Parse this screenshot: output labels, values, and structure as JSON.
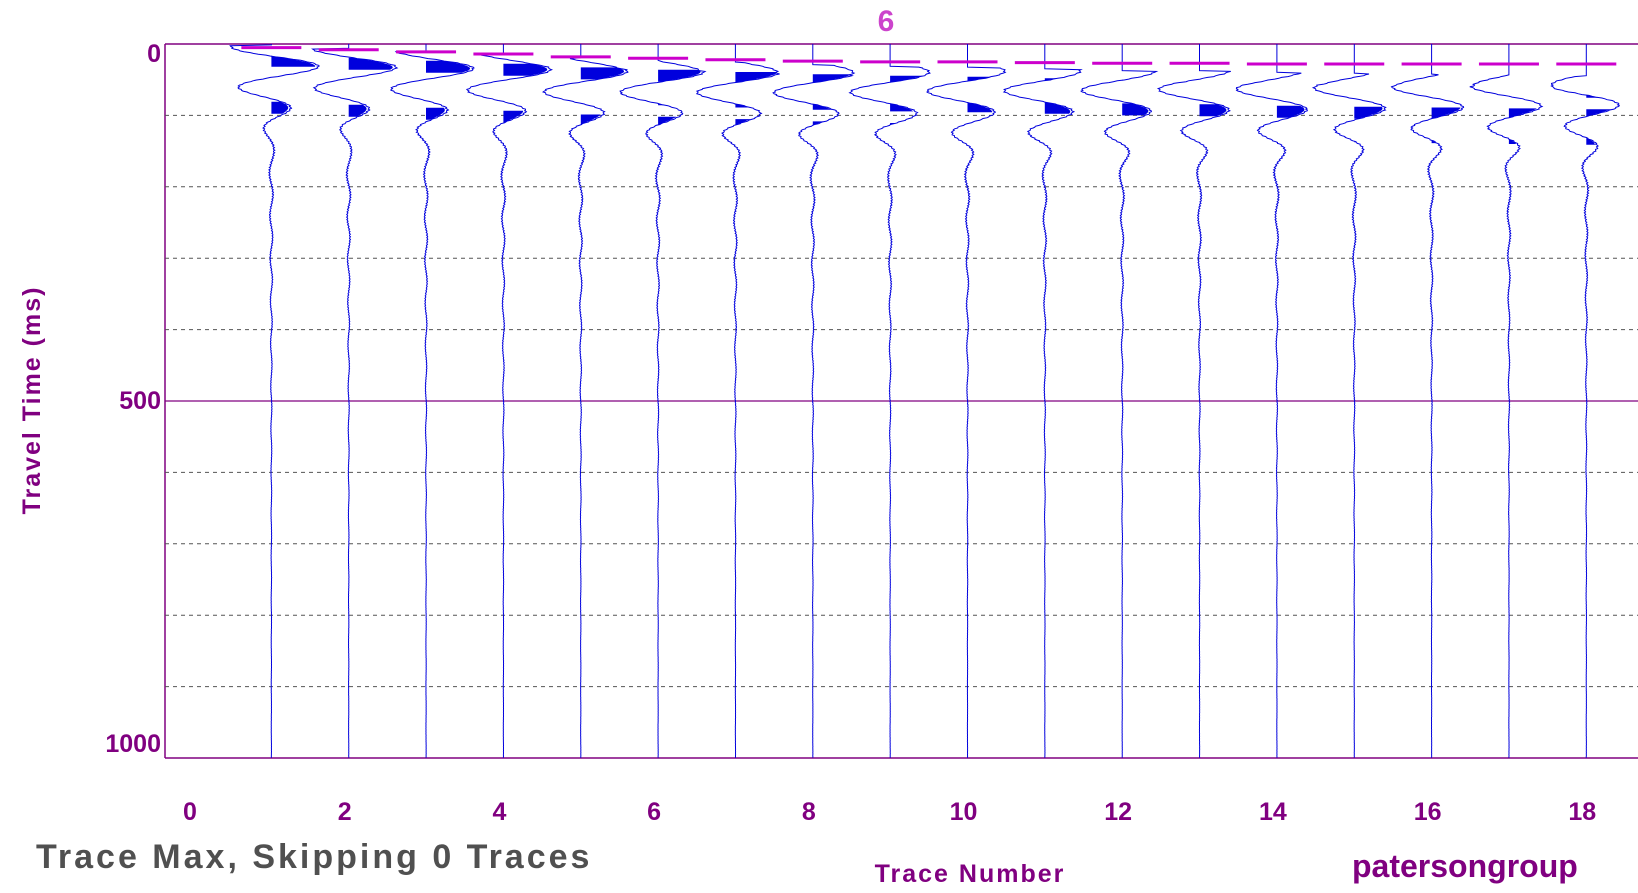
{
  "chart_data": {
    "type": "line",
    "title": "6",
    "xlabel": "Trace Number",
    "ylabel": "Travel Time (ms)",
    "xlim": [
      0,
      18.7
    ],
    "ylim": [
      0,
      1000
    ],
    "y_inverted": true,
    "x_ticks": [
      0,
      2,
      4,
      6,
      8,
      10,
      12,
      14,
      16,
      18
    ],
    "y_ticks": [
      0,
      500,
      1000
    ],
    "y_minor_grid": [
      100,
      200,
      300,
      400,
      600,
      700,
      800,
      900
    ],
    "grid": true,
    "trace_count": 18,
    "series": [
      {
        "name": "",
        "color": "#cc00cc",
        "style": "dashed",
        "x": [
          1,
          2,
          3,
          4,
          5,
          6,
          7,
          8,
          9,
          10,
          11,
          12,
          13,
          14,
          15,
          16,
          17,
          18
        ],
        "values": [
          5,
          8,
          11,
          14,
          18,
          20,
          22,
          24,
          25,
          25,
          26,
          27,
          27,
          28,
          28,
          28,
          28,
          28
        ]
      }
    ],
    "trace_color": "#0000dd"
  },
  "footer": {
    "left": "Trace Max, Skipping 0 Traces",
    "right": "patersongroup"
  }
}
